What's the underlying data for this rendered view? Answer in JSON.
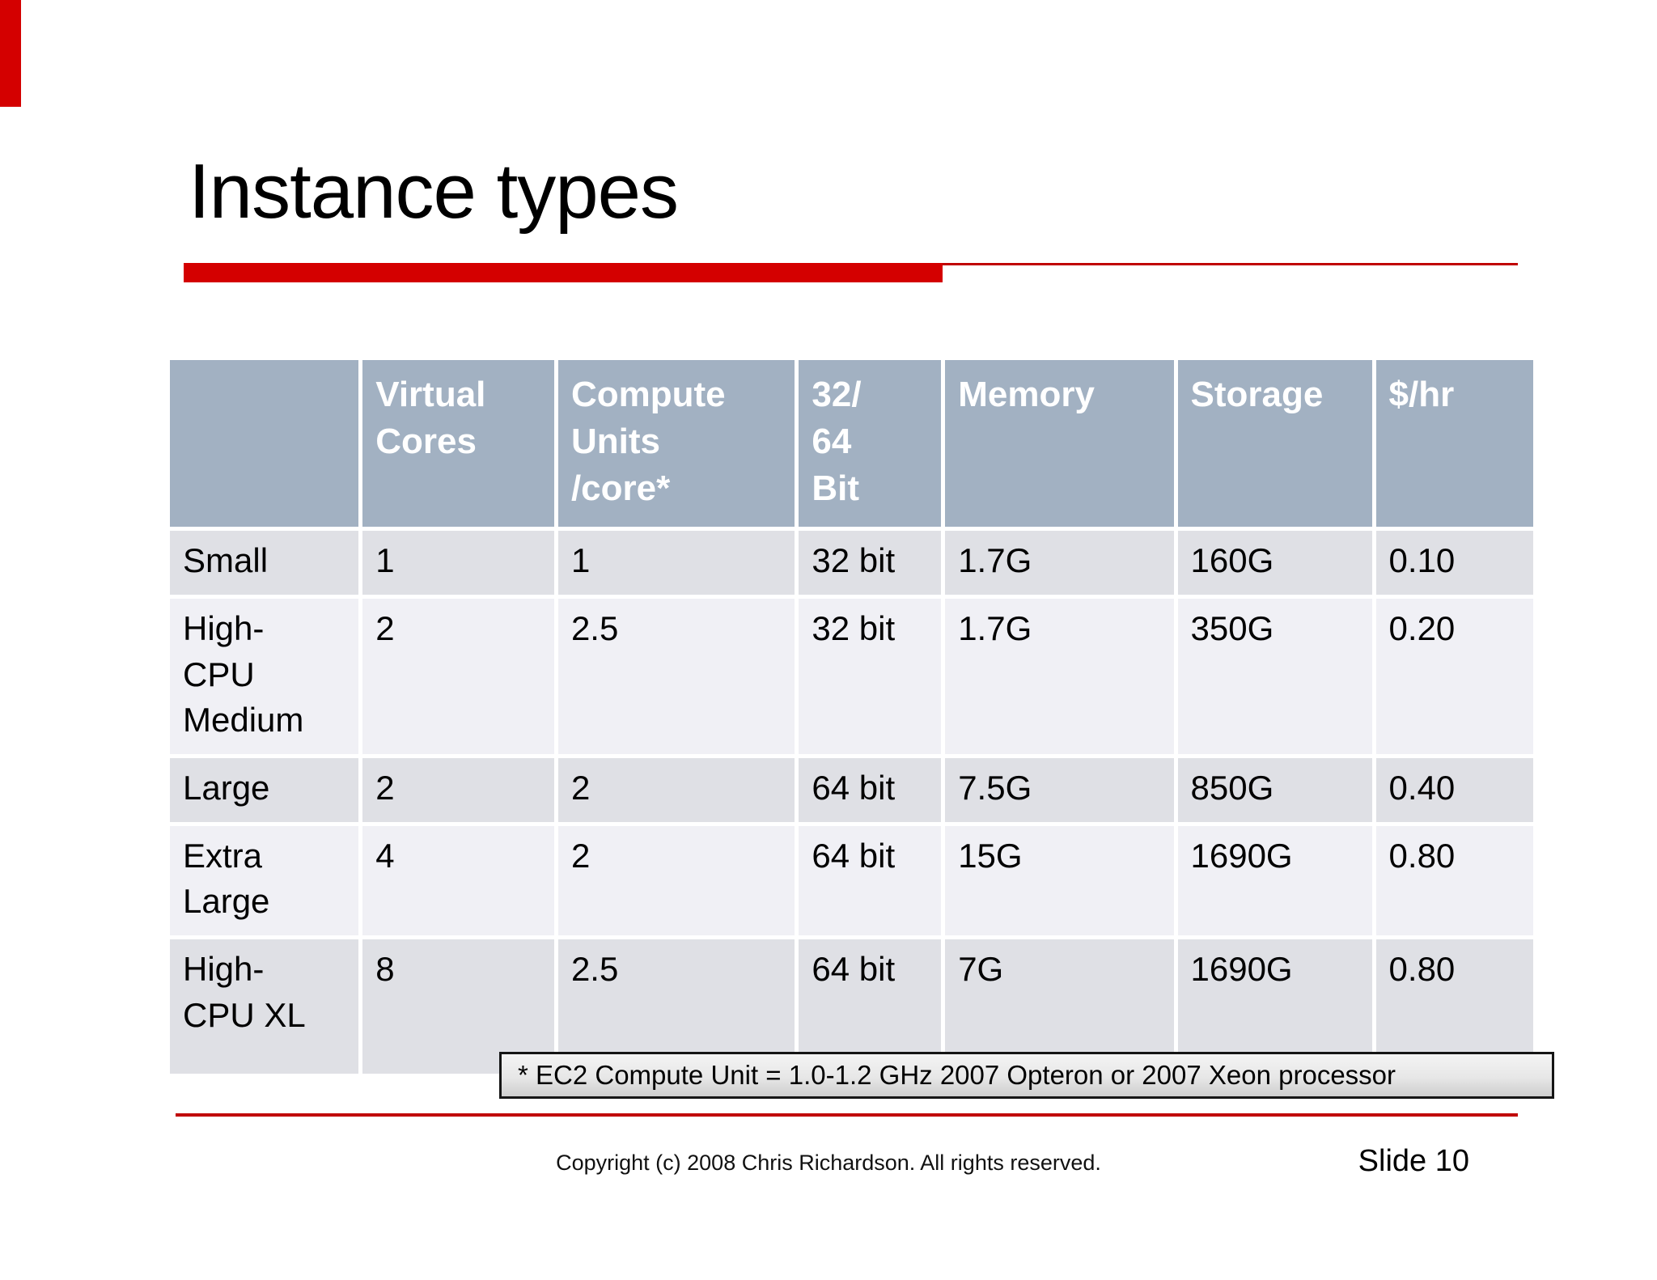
{
  "slide": {
    "title": "Instance types",
    "footnote": "* EC2 Compute Unit = 1.0-1.2 GHz 2007 Opteron or 2007 Xeon processor",
    "footer_copyright": "Copyright (c)  2008 Chris Richardson. All rights reserved.",
    "footer_slide_number": "Slide 10"
  },
  "table": {
    "columns": [
      "",
      "Virtual\nCores",
      "Compute\nUnits\n/core*",
      "32/\n64\nBit",
      "Memory",
      "Storage",
      "$/hr"
    ],
    "rows": [
      {
        "label": "Small",
        "values": [
          "1",
          "1",
          "32 bit",
          "1.7G",
          "160G",
          "0.10"
        ]
      },
      {
        "label": "High-\nCPU\nMedium",
        "values": [
          "2",
          "2.5",
          "32 bit",
          "1.7G",
          "350G",
          "0.20"
        ]
      },
      {
        "label": "Large",
        "values": [
          "2",
          "2",
          "64 bit",
          "7.5G",
          "850G",
          "0.40"
        ]
      },
      {
        "label": "Extra\nLarge",
        "values": [
          "4",
          "2",
          "64 bit",
          "15G",
          "1690G",
          "0.80"
        ]
      },
      {
        "label": "High-\nCPU XL",
        "values": [
          "8",
          "2.5",
          "64 bit",
          "7G",
          "1690G",
          "0.80"
        ]
      }
    ]
  },
  "colors": {
    "accent_red": "#d40000",
    "rule_red": "#c00000",
    "table_header_bg": "#a2b1c2",
    "table_header_text": "#ffffff",
    "row_odd_bg": "#dfe0e5",
    "row_even_bg": "#f0f0f5"
  }
}
